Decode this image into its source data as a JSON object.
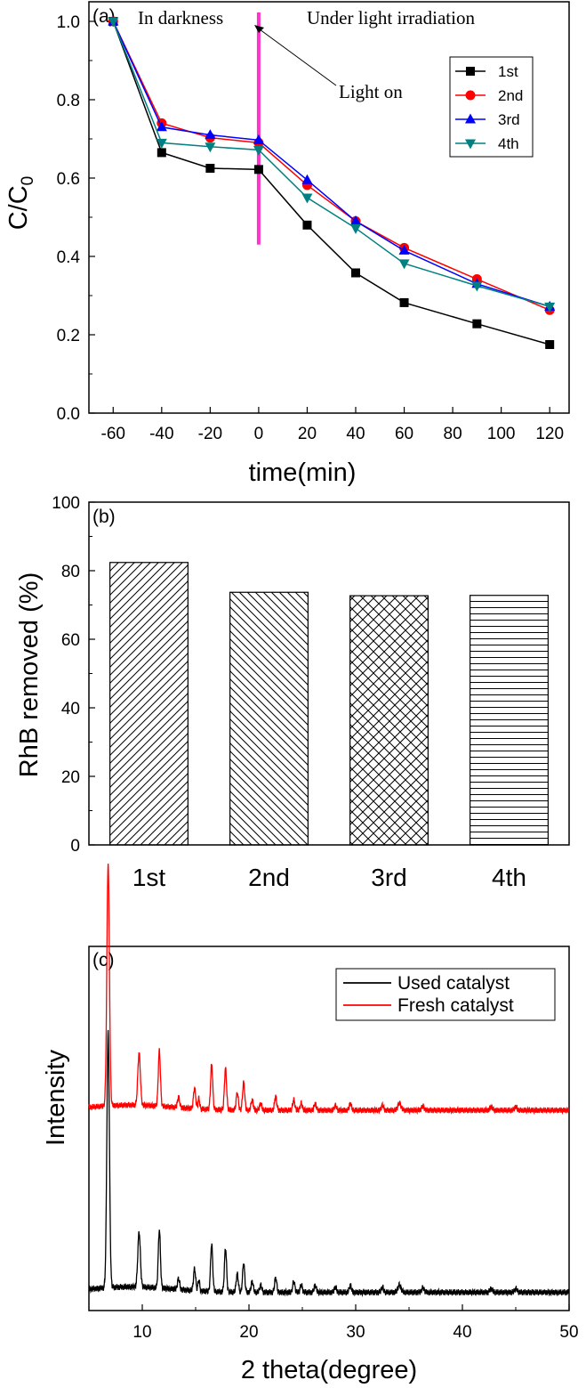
{
  "chart_data": [
    {
      "type": "line",
      "panel": "(a)",
      "xlabel": "time(min)",
      "ylabel_main": "C/C",
      "ylabel_sub": "0",
      "x": [
        -60,
        -40,
        -20,
        0,
        20,
        40,
        60,
        90,
        120
      ],
      "xlim": [
        -70,
        128
      ],
      "ylim": [
        0.0,
        1.05
      ],
      "xticks": [
        "-60",
        "-40",
        "-20",
        "0",
        "20",
        "40",
        "60",
        "80",
        "100",
        "120"
      ],
      "xtick_values": [
        -60,
        -40,
        -20,
        0,
        20,
        40,
        60,
        80,
        100,
        120
      ],
      "yticks": [
        "0.0",
        "0.2",
        "0.4",
        "0.6",
        "0.8",
        "1.0"
      ],
      "ytick_values": [
        0.0,
        0.2,
        0.4,
        0.6,
        0.8,
        1.0
      ],
      "series": [
        {
          "name": "1st",
          "color": "#000000",
          "marker": "square",
          "values": [
            1.0,
            0.665,
            0.625,
            0.622,
            0.48,
            0.358,
            0.282,
            0.228,
            0.175
          ]
        },
        {
          "name": "2nd",
          "color": "#ff0000",
          "marker": "circle",
          "values": [
            1.0,
            0.74,
            0.703,
            0.69,
            0.582,
            0.49,
            0.422,
            0.342,
            0.263
          ]
        },
        {
          "name": "3rd",
          "color": "#0000ff",
          "marker": "triangle-up",
          "values": [
            1.0,
            0.73,
            0.71,
            0.697,
            0.595,
            0.49,
            0.415,
            0.33,
            0.272
          ]
        },
        {
          "name": "4th",
          "color": "#008080",
          "marker": "triangle-down",
          "values": [
            1.0,
            0.69,
            0.68,
            0.672,
            0.55,
            0.472,
            0.382,
            0.325,
            0.272
          ]
        }
      ],
      "marker_line": {
        "x": 0,
        "y_from": 0.43,
        "y_to": 1.07,
        "color": "#ff33cc"
      },
      "annotations": {
        "left": "In darkness",
        "right": "Under light irradiation",
        "arrow": "Light on"
      },
      "legend_position": "top-right"
    },
    {
      "type": "bar",
      "panel": "(b)",
      "ylabel": "RhB removed (%)",
      "categories": [
        "1st",
        "2nd",
        "3rd",
        "4th"
      ],
      "values": [
        82.4,
        73.7,
        72.7,
        72.8
      ],
      "patterns": [
        "diag-up",
        "diag-down",
        "crosshatch",
        "horizontal"
      ],
      "ylim": [
        0,
        100
      ],
      "yticks": [
        "0",
        "20",
        "40",
        "60",
        "80",
        "100"
      ],
      "ytick_values": [
        0,
        20,
        40,
        60,
        80,
        100
      ]
    },
    {
      "type": "line",
      "panel": "(c)",
      "xlabel": "2 theta(degree)",
      "ylabel": "Intensity",
      "xlim": [
        5,
        50
      ],
      "ylim": [
        0,
        100
      ],
      "xticks": [
        "10",
        "20",
        "30",
        "40",
        "50"
      ],
      "xtick_values": [
        10,
        20,
        30,
        40,
        50
      ],
      "peaks": [
        {
          "x": 6.8,
          "h": 70,
          "w": 0.12
        },
        {
          "x": 9.7,
          "h": 15,
          "w": 0.12
        },
        {
          "x": 11.6,
          "h": 16,
          "w": 0.1
        },
        {
          "x": 13.4,
          "h": 3,
          "w": 0.1
        },
        {
          "x": 14.9,
          "h": 6,
          "w": 0.1
        },
        {
          "x": 15.3,
          "h": 3,
          "w": 0.08
        },
        {
          "x": 16.5,
          "h": 13,
          "w": 0.1
        },
        {
          "x": 17.8,
          "h": 12,
          "w": 0.1
        },
        {
          "x": 18.9,
          "h": 5,
          "w": 0.1
        },
        {
          "x": 19.5,
          "h": 8,
          "w": 0.1
        },
        {
          "x": 20.3,
          "h": 3,
          "w": 0.1
        },
        {
          "x": 21.1,
          "h": 2,
          "w": 0.1
        },
        {
          "x": 22.5,
          "h": 4,
          "w": 0.1
        },
        {
          "x": 24.2,
          "h": 3,
          "w": 0.1
        },
        {
          "x": 24.9,
          "h": 2,
          "w": 0.1
        },
        {
          "x": 26.2,
          "h": 2,
          "w": 0.1
        },
        {
          "x": 28.1,
          "h": 1.5,
          "w": 0.1
        },
        {
          "x": 29.5,
          "h": 2,
          "w": 0.1
        },
        {
          "x": 32.5,
          "h": 1.5,
          "w": 0.1
        },
        {
          "x": 34.1,
          "h": 2,
          "w": 0.15
        },
        {
          "x": 36.3,
          "h": 1.2,
          "w": 0.12
        },
        {
          "x": 42.7,
          "h": 1,
          "w": 0.12
        },
        {
          "x": 45.0,
          "h": 1,
          "w": 0.12
        }
      ],
      "series": [
        {
          "name": "Used catalyst",
          "color": "#000000",
          "baseline": 5,
          "scale": 1.0
        },
        {
          "name": "Fresh catalyst",
          "color": "#ff0000",
          "baseline": 55,
          "scale": 0.95
        }
      ],
      "legend_position": "top-right"
    }
  ]
}
